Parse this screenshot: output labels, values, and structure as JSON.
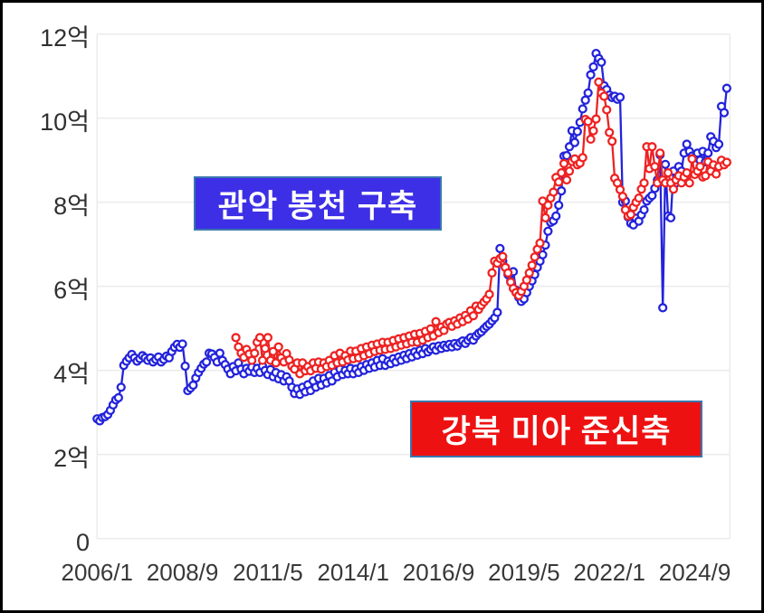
{
  "figure": {
    "background": "#ffffff",
    "frame_border_color": "#000000",
    "gridline_color": "#ececec",
    "axis_text_color": "#383838"
  },
  "chart_data": {
    "type": "line",
    "title": "",
    "xlabel": "",
    "ylabel": "",
    "grid": "horizontal-only",
    "legend_position": "inline-annotation-boxes",
    "x_axis": {
      "start_month": "2006/1",
      "end_month": "2025/9",
      "tick_labels": [
        "2006/1",
        "2008/9",
        "2011/5",
        "2014/1",
        "2016/9",
        "2019/5",
        "2022/1",
        "2024/9"
      ],
      "tick_month_indices": [
        0,
        32,
        64,
        96,
        128,
        160,
        192,
        224
      ]
    },
    "y_axis": {
      "unit": "억",
      "tick_labels": [
        "0",
        "2억",
        "4억",
        "6억",
        "8억",
        "10억",
        "12억"
      ],
      "tick_values": [
        0,
        2,
        4,
        6,
        8,
        10,
        12
      ],
      "range": [
        0,
        12
      ]
    },
    "series": [
      {
        "name": "관악 봉천 구축",
        "color": "#2323dc",
        "marker": "open-circle",
        "start_month_index": 0,
        "values": [
          2.85,
          2.8,
          2.88,
          2.9,
          2.95,
          3.05,
          3.18,
          3.3,
          3.35,
          3.6,
          4.12,
          4.22,
          4.3,
          4.38,
          4.3,
          4.22,
          4.28,
          4.35,
          4.3,
          4.24,
          4.3,
          4.2,
          4.26,
          4.32,
          4.2,
          4.26,
          4.34,
          4.3,
          4.45,
          4.55,
          4.62,
          4.55,
          4.63,
          4.1,
          3.52,
          3.58,
          3.65,
          3.82,
          3.95,
          4.05,
          4.15,
          4.2,
          4.41,
          4.39,
          4.31,
          4.2,
          4.41,
          4.24,
          4.14,
          4.03,
          3.92,
          4.09,
          3.99,
          4.18,
          4.03,
          3.92,
          4.05,
          3.98,
          4.08,
          3.95,
          4.05,
          3.95,
          4.1,
          4.0,
          3.9,
          4.02,
          3.85,
          3.95,
          3.8,
          3.9,
          3.75,
          3.85,
          3.75,
          3.6,
          3.45,
          3.56,
          3.43,
          3.6,
          3.49,
          3.66,
          3.52,
          3.75,
          3.6,
          3.81,
          3.65,
          3.81,
          3.7,
          3.88,
          3.75,
          3.96,
          3.85,
          4.03,
          3.9,
          4.0,
          3.92,
          4.05,
          3.92,
          4.03,
          3.95,
          4.09,
          4.0,
          4.14,
          4.05,
          4.18,
          4.08,
          4.24,
          4.12,
          4.28,
          4.12,
          4.22,
          4.16,
          4.28,
          4.2,
          4.32,
          4.24,
          4.36,
          4.28,
          4.4,
          4.32,
          4.44,
          4.36,
          4.48,
          4.4,
          4.52,
          4.44,
          4.5,
          4.56,
          4.48,
          4.58,
          4.52,
          4.6,
          4.55,
          4.62,
          4.56,
          4.64,
          4.58,
          4.66,
          4.7,
          4.64,
          4.72,
          4.78,
          4.72,
          4.82,
          4.88,
          4.92,
          4.99,
          5.05,
          5.1,
          5.18,
          5.25,
          5.38,
          6.9,
          6.6,
          6.45,
          6.28,
          6.13,
          6.35,
          5.91,
          5.74,
          5.64,
          5.7,
          5.85,
          6.0,
          6.13,
          6.28,
          6.45,
          6.6,
          6.75,
          6.98,
          7.31,
          7.52,
          7.56,
          7.67,
          7.93,
          8.27,
          9.1,
          9.11,
          9.32,
          9.7,
          9.42,
          9.68,
          9.9,
          10.22,
          10.43,
          10.6,
          11.03,
          11.22,
          11.54,
          11.42,
          11.33,
          10.77,
          10.68,
          10.55,
          10.49,
          10.52,
          10.45,
          10.5,
          8.0,
          8.03,
          7.65,
          7.5,
          7.46,
          7.62,
          7.55,
          7.7,
          7.82,
          8.03,
          8.1,
          8.16,
          8.33,
          8.53,
          9.13,
          5.49,
          8.9,
          7.67,
          7.63,
          8.74,
          8.46,
          8.85,
          8.74,
          9.17,
          9.38,
          9.21,
          9.1,
          9.06,
          9.17,
          9.0,
          9.21,
          8.96,
          9.17,
          9.56,
          9.45,
          9.3,
          9.38,
          10.28,
          10.13,
          10.71
        ]
      },
      {
        "name": "강북 미아 준신축",
        "color": "#ee2222",
        "marker": "open-circle",
        "start_month_index": 52,
        "values": [
          4.78,
          4.56,
          4.41,
          4.31,
          4.5,
          4.39,
          4.24,
          4.41,
          4.67,
          4.78,
          4.24,
          4.52,
          4.78,
          4.24,
          4.45,
          4.18,
          4.56,
          4.3,
          4.2,
          4.4,
          4.25,
          4.1,
          4.03,
          4.18,
          3.92,
          4.18,
          3.99,
          4.09,
          3.99,
          4.18,
          4.05,
          4.2,
          4.03,
          4.18,
          4.09,
          4.24,
          4.12,
          4.35,
          4.18,
          4.41,
          4.2,
          4.35,
          4.25,
          4.46,
          4.28,
          4.46,
          4.3,
          4.52,
          4.35,
          4.56,
          4.4,
          4.6,
          4.45,
          4.63,
          4.48,
          4.67,
          4.5,
          4.67,
          4.52,
          4.71,
          4.56,
          4.75,
          4.6,
          4.78,
          4.63,
          4.82,
          4.67,
          4.86,
          4.67,
          4.88,
          4.72,
          4.93,
          4.78,
          4.99,
          4.82,
          5.16,
          4.9,
          5.03,
          4.95,
          5.1,
          5.14,
          5.05,
          5.18,
          5.1,
          5.25,
          5.16,
          5.31,
          5.22,
          5.42,
          5.3,
          5.53,
          5.45,
          5.55,
          5.63,
          5.7,
          5.81,
          6.32,
          6.6,
          6.55,
          6.66,
          6.71,
          6.45,
          6.32,
          6.1,
          5.95,
          5.85,
          5.78,
          5.88,
          6.0,
          6.15,
          6.32,
          6.5,
          6.7,
          6.88,
          7.03,
          8.03,
          7.63,
          7.93,
          8.1,
          8.24,
          8.59,
          8.48,
          8.7,
          8.92,
          8.53,
          8.74,
          8.97,
          9.03,
          8.89,
          8.93,
          9.06,
          9.97,
          9.92,
          9.5,
          9.7,
          9.98,
          10.86,
          10.6,
          10.52,
          10.2,
          9.66,
          9.45,
          8.57,
          8.46,
          8.3,
          8.14,
          7.82,
          7.67,
          7.71,
          7.88,
          8.0,
          8.1,
          8.31,
          8.46,
          9.32,
          8.8,
          9.32,
          8.85,
          8.46,
          9.17,
          8.53,
          8.46,
          8.7,
          8.46,
          8.31,
          8.53,
          8.63,
          8.46,
          8.6,
          8.7,
          8.46,
          9.03,
          8.66,
          8.74,
          8.85,
          8.6,
          8.63,
          8.96,
          8.74,
          8.89,
          8.67,
          8.85,
          9.0,
          8.89,
          8.95
        ]
      }
    ],
    "annotations": [
      {
        "text": "관악 봉천 구축",
        "bg": "#3d2fe6",
        "border": "#3a76b0",
        "text_color": "#ffffff"
      },
      {
        "text": "강북 미아 준신축",
        "bg": "#ee1111",
        "border": "#3a76b0",
        "text_color": "#ffffff"
      }
    ]
  }
}
